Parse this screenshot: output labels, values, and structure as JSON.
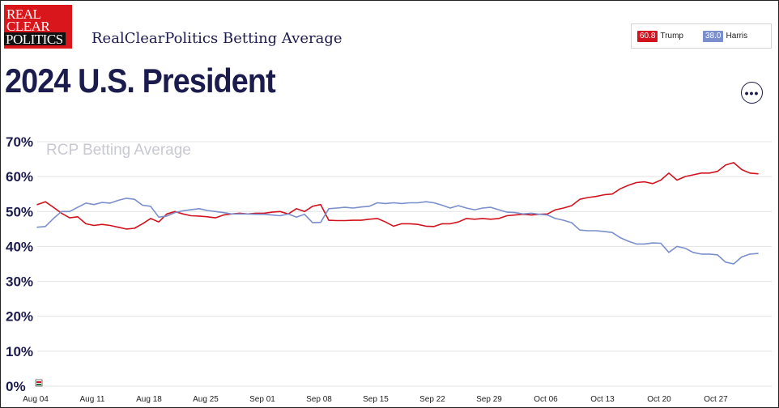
{
  "brand": {
    "logo_lines": [
      "REAL",
      "CLEAR",
      "POLITICS"
    ],
    "site_title": "RealClearPolitics Betting Average"
  },
  "legend": [
    {
      "name": "Trump",
      "value": "60.8",
      "color": "#d2121e"
    },
    {
      "name": "Harris",
      "value": "38.0",
      "color": "#7a8fcb"
    }
  ],
  "page_title": "2024 U.S. President",
  "more_button": {
    "icon": "more-horizontal-icon",
    "label": "•••"
  },
  "chart_data": {
    "type": "line",
    "watermark": "RCP Betting Average",
    "ylim": [
      0,
      70
    ],
    "yticks": [
      "0%",
      "10%",
      "20%",
      "30%",
      "40%",
      "50%",
      "60%",
      "70%"
    ],
    "xlim": [
      "2024-08-04",
      "2024-11-02"
    ],
    "xticks": [
      "Aug 04",
      "Aug 11",
      "Aug 18",
      "Aug 25",
      "Sep 01",
      "Sep 08",
      "Sep 15",
      "Sep 22",
      "Sep 29",
      "Oct 06",
      "Oct 13",
      "Oct 20",
      "Oct 27"
    ],
    "grid": true,
    "legend_position": "top-right",
    "x": [
      "2024-08-04",
      "2024-08-05",
      "2024-08-06",
      "2024-08-07",
      "2024-08-08",
      "2024-08-09",
      "2024-08-10",
      "2024-08-11",
      "2024-08-12",
      "2024-08-13",
      "2024-08-14",
      "2024-08-15",
      "2024-08-16",
      "2024-08-17",
      "2024-08-18",
      "2024-08-19",
      "2024-08-20",
      "2024-08-21",
      "2024-08-22",
      "2024-08-23",
      "2024-08-24",
      "2024-08-25",
      "2024-08-26",
      "2024-08-27",
      "2024-08-28",
      "2024-08-29",
      "2024-08-30",
      "2024-08-31",
      "2024-09-01",
      "2024-09-02",
      "2024-09-03",
      "2024-09-04",
      "2024-09-05",
      "2024-09-06",
      "2024-09-07",
      "2024-09-08",
      "2024-09-09",
      "2024-09-10",
      "2024-09-11",
      "2024-09-12",
      "2024-09-13",
      "2024-09-14",
      "2024-09-15",
      "2024-09-16",
      "2024-09-17",
      "2024-09-18",
      "2024-09-19",
      "2024-09-20",
      "2024-09-21",
      "2024-09-22",
      "2024-09-23",
      "2024-09-24",
      "2024-09-25",
      "2024-09-26",
      "2024-09-27",
      "2024-09-28",
      "2024-09-29",
      "2024-09-30",
      "2024-10-01",
      "2024-10-02",
      "2024-10-03",
      "2024-10-04",
      "2024-10-05",
      "2024-10-06",
      "2024-10-07",
      "2024-10-08",
      "2024-10-09",
      "2024-10-10",
      "2024-10-11",
      "2024-10-12",
      "2024-10-13",
      "2024-10-14",
      "2024-10-15",
      "2024-10-16",
      "2024-10-17",
      "2024-10-18",
      "2024-10-19",
      "2024-10-20",
      "2024-10-21",
      "2024-10-22",
      "2024-10-23",
      "2024-10-24",
      "2024-10-25",
      "2024-10-26",
      "2024-10-27",
      "2024-10-28",
      "2024-10-29",
      "2024-10-30",
      "2024-10-31",
      "2024-11-01"
    ],
    "series": [
      {
        "name": "Trump",
        "color": "#d2121e",
        "values": [
          52.0,
          52.8,
          51.2,
          49.5,
          48.2,
          48.5,
          46.5,
          46.0,
          46.3,
          46.0,
          45.5,
          45.0,
          45.2,
          46.5,
          48.0,
          47.0,
          49.3,
          50.0,
          49.3,
          48.8,
          48.7,
          48.5,
          48.2,
          49.0,
          49.3,
          49.5,
          49.3,
          49.5,
          49.5,
          49.8,
          50.0,
          49.3,
          50.8,
          50.0,
          51.5,
          52.0,
          47.5,
          47.4,
          47.4,
          47.5,
          47.5,
          47.8,
          48.0,
          47.0,
          45.8,
          46.5,
          46.5,
          46.3,
          45.8,
          45.7,
          46.5,
          46.5,
          47.0,
          48.0,
          47.8,
          48.0,
          47.8,
          48.0,
          48.8,
          49.0,
          49.2,
          49.0,
          49.2,
          49.3,
          50.5,
          51.0,
          51.7,
          53.5,
          54.0,
          54.3,
          54.8,
          55.0,
          56.5,
          57.5,
          58.3,
          58.5,
          58.0,
          59.0,
          61.0,
          59.0,
          60.0,
          60.5,
          61.0,
          61.0,
          61.5,
          63.3,
          64.0,
          62.0,
          61.0,
          60.8
        ]
      },
      {
        "name": "Harris",
        "color": "#7a8fcb",
        "values": [
          45.5,
          45.7,
          48.0,
          50.0,
          50.0,
          51.2,
          52.4,
          52.0,
          52.6,
          52.4,
          53.2,
          53.8,
          53.5,
          51.8,
          51.5,
          48.4,
          48.7,
          49.7,
          50.2,
          50.5,
          50.8,
          50.3,
          50.0,
          49.7,
          49.3,
          49.3,
          49.3,
          49.2,
          49.2,
          49.0,
          48.8,
          49.3,
          48.4,
          49.2,
          46.8,
          46.9,
          50.8,
          51.0,
          51.2,
          51.0,
          51.3,
          51.5,
          52.5,
          52.3,
          52.5,
          52.3,
          52.5,
          52.5,
          52.8,
          52.5,
          51.8,
          51.0,
          51.7,
          51.0,
          50.5,
          51.0,
          51.2,
          50.5,
          49.8,
          49.7,
          49.3,
          49.5,
          49.2,
          49.0,
          48.0,
          47.5,
          46.8,
          44.7,
          44.5,
          44.5,
          44.3,
          44.0,
          42.5,
          41.5,
          40.7,
          40.7,
          41.0,
          40.9,
          38.3,
          40.0,
          39.5,
          38.3,
          37.8,
          37.8,
          37.6,
          35.5,
          35.0,
          37.0,
          37.8,
          38.0
        ]
      }
    ]
  }
}
